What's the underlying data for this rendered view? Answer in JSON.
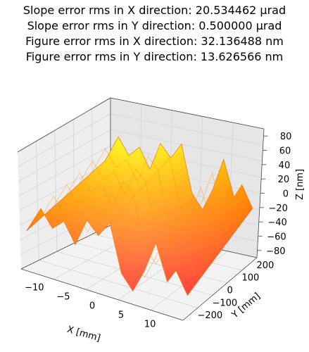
{
  "chart_data": {
    "type": "surface",
    "title_lines": [
      "Slope error rms in X direction: 20.534462 μrad",
      "Slope error rms in Y direction: 0.500000 μrad",
      "Figure error rms in X direction: 32.136488 nm",
      "Figure error rms in Y direction: 13.626566 nm"
    ],
    "xlabel": "X [mm]",
    "ylabel": "Y [mm]",
    "zlabel": "Z [nm]",
    "x_ticks": [
      "−10",
      "−5",
      "0",
      "5",
      "10"
    ],
    "y_ticks": [
      "−200",
      "−100",
      "0",
      "100",
      "200"
    ],
    "z_ticks": [
      "−80",
      "−60",
      "−40",
      "−20",
      "0",
      "20",
      "40",
      "60",
      "80"
    ],
    "xlim": [
      -14,
      14
    ],
    "ylim": [
      -250,
      250
    ],
    "zlim": [
      -90,
      90
    ],
    "x_profile": {
      "x": [
        -14,
        -11.5,
        -9.5,
        -7.5,
        -5.5,
        -3.5,
        -1.5,
        0.5,
        2.5,
        4.5,
        6.5,
        8.5,
        10.5,
        12,
        14
      ],
      "z": [
        -20,
        18,
        -5,
        10,
        -18,
        22,
        5,
        28,
        -38,
        -58,
        -25,
        20,
        -30,
        -10,
        -40
      ]
    },
    "colormap": "autumn",
    "grid": true
  }
}
